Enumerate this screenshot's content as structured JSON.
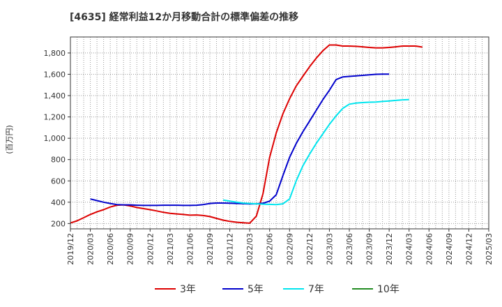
{
  "chart_data": {
    "type": "line",
    "title": "[4635]  経常利益12か月移動合計の標準偏差の推移",
    "ylabel": "(百万円)",
    "xlabel": "",
    "ylim": [
      150,
      1950
    ],
    "yticks": [
      200,
      400,
      600,
      800,
      1000,
      1200,
      1400,
      1600,
      1800
    ],
    "ytick_labels": [
      "200",
      "400",
      "600",
      "800",
      "1,000",
      "1,200",
      "1,400",
      "1,600",
      "1,800"
    ],
    "x_tick_labels": [
      "2019/12",
      "2020/03",
      "2020/06",
      "2020/09",
      "2020/12",
      "2021/03",
      "2021/06",
      "2021/09",
      "2021/12",
      "2022/03",
      "2022/06",
      "2022/09",
      "2022/12",
      "2023/03",
      "2023/06",
      "2023/09",
      "2023/12",
      "2024/03",
      "2024/06",
      "2024/09",
      "2024/12",
      "2025/03"
    ],
    "grid": true,
    "legend_position": "bottom",
    "series": [
      {
        "name": "3年",
        "color": "#dd0000",
        "points": [
          [
            0,
            205
          ],
          [
            1,
            225
          ],
          [
            2,
            255
          ],
          [
            3,
            285
          ],
          [
            4,
            310
          ],
          [
            5,
            330
          ],
          [
            6,
            355
          ],
          [
            7,
            372
          ],
          [
            8,
            375
          ],
          [
            9,
            365
          ],
          [
            10,
            350
          ],
          [
            11,
            340
          ],
          [
            12,
            330
          ],
          [
            13,
            318
          ],
          [
            14,
            305
          ],
          [
            15,
            295
          ],
          [
            16,
            290
          ],
          [
            17,
            285
          ],
          [
            18,
            278
          ],
          [
            19,
            280
          ],
          [
            20,
            275
          ],
          [
            21,
            265
          ],
          [
            22,
            248
          ],
          [
            23,
            232
          ],
          [
            24,
            220
          ],
          [
            25,
            212
          ],
          [
            26,
            207
          ],
          [
            27,
            203
          ],
          [
            28,
            270
          ],
          [
            29,
            480
          ],
          [
            30,
            820
          ],
          [
            31,
            1050
          ],
          [
            32,
            1230
          ],
          [
            33,
            1370
          ],
          [
            34,
            1490
          ],
          [
            35,
            1580
          ],
          [
            36,
            1670
          ],
          [
            37,
            1750
          ],
          [
            38,
            1820
          ],
          [
            39,
            1875
          ],
          [
            40,
            1875
          ],
          [
            41,
            1865
          ],
          [
            42,
            1865
          ],
          [
            43,
            1862
          ],
          [
            44,
            1858
          ],
          [
            45,
            1852
          ],
          [
            46,
            1848
          ],
          [
            47,
            1848
          ],
          [
            48,
            1852
          ],
          [
            49,
            1858
          ],
          [
            50,
            1865
          ],
          [
            51,
            1865
          ],
          [
            52,
            1865
          ],
          [
            53,
            1855
          ]
        ]
      },
      {
        "name": "5年",
        "color": "#0000cc",
        "points": [
          [
            3,
            430
          ],
          [
            4,
            415
          ],
          [
            5,
            400
          ],
          [
            6,
            388
          ],
          [
            7,
            378
          ],
          [
            8,
            375
          ],
          [
            9,
            375
          ],
          [
            10,
            372
          ],
          [
            11,
            370
          ],
          [
            12,
            370
          ],
          [
            13,
            370
          ],
          [
            14,
            372
          ],
          [
            15,
            372
          ],
          [
            16,
            372
          ],
          [
            17,
            370
          ],
          [
            18,
            370
          ],
          [
            19,
            372
          ],
          [
            20,
            378
          ],
          [
            21,
            388
          ],
          [
            22,
            392
          ],
          [
            23,
            392
          ],
          [
            24,
            390
          ],
          [
            25,
            388
          ],
          [
            26,
            386
          ],
          [
            27,
            384
          ],
          [
            28,
            385
          ],
          [
            29,
            390
          ],
          [
            30,
            410
          ],
          [
            31,
            470
          ],
          [
            32,
            650
          ],
          [
            33,
            820
          ],
          [
            34,
            950
          ],
          [
            35,
            1060
          ],
          [
            36,
            1160
          ],
          [
            37,
            1260
          ],
          [
            38,
            1360
          ],
          [
            39,
            1450
          ],
          [
            40,
            1550
          ],
          [
            41,
            1575
          ],
          [
            42,
            1580
          ],
          [
            43,
            1585
          ],
          [
            44,
            1590
          ],
          [
            45,
            1595
          ],
          [
            46,
            1600
          ],
          [
            47,
            1602
          ],
          [
            48,
            1602
          ]
        ]
      },
      {
        "name": "7年",
        "color": "#00e5ee",
        "points": [
          [
            23,
            420
          ],
          [
            24,
            410
          ],
          [
            25,
            400
          ],
          [
            26,
            392
          ],
          [
            27,
            388
          ],
          [
            28,
            385
          ],
          [
            29,
            382
          ],
          [
            30,
            380
          ],
          [
            31,
            378
          ],
          [
            32,
            385
          ],
          [
            33,
            430
          ],
          [
            34,
            600
          ],
          [
            35,
            740
          ],
          [
            36,
            850
          ],
          [
            37,
            950
          ],
          [
            38,
            1040
          ],
          [
            39,
            1130
          ],
          [
            40,
            1210
          ],
          [
            41,
            1280
          ],
          [
            42,
            1320
          ],
          [
            43,
            1330
          ],
          [
            44,
            1335
          ],
          [
            45,
            1338
          ],
          [
            46,
            1340
          ],
          [
            47,
            1345
          ],
          [
            48,
            1350
          ],
          [
            49,
            1355
          ],
          [
            50,
            1360
          ],
          [
            51,
            1362
          ]
        ]
      },
      {
        "name": "10年",
        "color": "#228b22",
        "points": []
      }
    ]
  }
}
